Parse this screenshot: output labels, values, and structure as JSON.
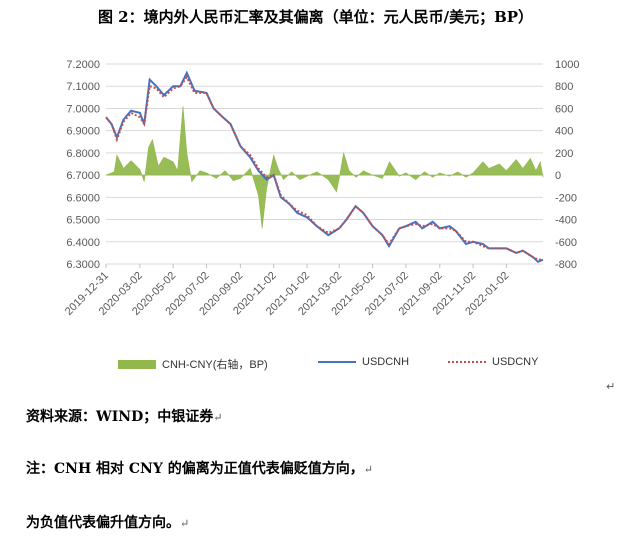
{
  "title": "图 2：境内外人民币汇率及其偏离（单位：元人民币/美元；BP）",
  "source_note": "资料来源：WIND；中银证券",
  "note_line1": "注：CNH 相对 CNY 的偏离为正值代表偏贬值方向，",
  "note_line2": "为负值代表偏升值方向。",
  "marks": {
    "return_arrow": "↵"
  },
  "colors": {
    "cnh": "#4472c4",
    "cny": "#c0504d",
    "spread": "#92b84d",
    "grid": "#d9d9d9",
    "axis_text": "#595959"
  },
  "chart_data": {
    "type": "line",
    "legend_position": "bottom",
    "grid": true,
    "x_tick_labels": [
      "2019-12-31",
      "2020-03-02",
      "2020-05-02",
      "2020-07-02",
      "2020-09-02",
      "2020-11-02",
      "2021-01-02",
      "2021-03-02",
      "2021-05-02",
      "2021-07-02",
      "2021-09-02",
      "2021-11-02",
      "2022-01-02"
    ],
    "x_range": [
      "2019-12-31",
      "2022-03-10"
    ],
    "y_left": {
      "ylim": [
        6.3,
        7.2
      ],
      "ticks": [
        "6.3000",
        "6.4000",
        "6.5000",
        "6.6000",
        "6.7000",
        "6.8000",
        "6.9000",
        "7.0000",
        "7.1000",
        "7.2000"
      ]
    },
    "y_right": {
      "ylim": [
        -800,
        1000
      ],
      "ticks": [
        "-800",
        "-600",
        "-400",
        "-200",
        "0",
        "200",
        "400",
        "600",
        "800",
        "1000"
      ]
    },
    "series": [
      {
        "name": "USDCNH",
        "type": "line",
        "axis": "left",
        "points": [
          [
            "2019-12-31",
            6.96
          ],
          [
            "2020-01-10",
            6.93
          ],
          [
            "2020-01-20",
            6.87
          ],
          [
            "2020-02-01",
            6.95
          ],
          [
            "2020-02-15",
            6.99
          ],
          [
            "2020-03-02",
            6.98
          ],
          [
            "2020-03-10",
            6.93
          ],
          [
            "2020-03-20",
            7.13
          ],
          [
            "2020-04-01",
            7.1
          ],
          [
            "2020-04-15",
            7.06
          ],
          [
            "2020-05-02",
            7.1
          ],
          [
            "2020-05-15",
            7.1
          ],
          [
            "2020-05-27",
            7.16
          ],
          [
            "2020-06-10",
            7.08
          ],
          [
            "2020-07-02",
            7.07
          ],
          [
            "2020-07-15",
            7.0
          ],
          [
            "2020-08-01",
            6.96
          ],
          [
            "2020-08-15",
            6.93
          ],
          [
            "2020-09-02",
            6.83
          ],
          [
            "2020-09-20",
            6.78
          ],
          [
            "2020-10-05",
            6.72
          ],
          [
            "2020-10-20",
            6.68
          ],
          [
            "2020-11-02",
            6.7
          ],
          [
            "2020-11-15",
            6.6
          ],
          [
            "2020-12-01",
            6.57
          ],
          [
            "2020-12-15",
            6.53
          ],
          [
            "2021-01-02",
            6.51
          ],
          [
            "2021-01-20",
            6.47
          ],
          [
            "2021-02-10",
            6.43
          ],
          [
            "2021-03-02",
            6.46
          ],
          [
            "2021-03-15",
            6.5
          ],
          [
            "2021-04-01",
            6.56
          ],
          [
            "2021-04-15",
            6.53
          ],
          [
            "2021-05-02",
            6.47
          ],
          [
            "2021-05-20",
            6.43
          ],
          [
            "2021-06-01",
            6.38
          ],
          [
            "2021-06-20",
            6.46
          ],
          [
            "2021-07-02",
            6.47
          ],
          [
            "2021-07-20",
            6.49
          ],
          [
            "2021-08-01",
            6.46
          ],
          [
            "2021-08-20",
            6.49
          ],
          [
            "2021-09-02",
            6.46
          ],
          [
            "2021-09-20",
            6.47
          ],
          [
            "2021-10-01",
            6.45
          ],
          [
            "2021-10-20",
            6.39
          ],
          [
            "2021-11-02",
            6.4
          ],
          [
            "2021-11-20",
            6.39
          ],
          [
            "2021-12-01",
            6.37
          ],
          [
            "2021-12-20",
            6.37
          ],
          [
            "2022-01-02",
            6.37
          ],
          [
            "2022-01-20",
            6.35
          ],
          [
            "2022-02-01",
            6.36
          ],
          [
            "2022-02-20",
            6.33
          ],
          [
            "2022-03-01",
            6.31
          ],
          [
            "2022-03-10",
            6.32
          ]
        ]
      },
      {
        "name": "USDCNY",
        "type": "line",
        "axis": "left",
        "style": "dotted",
        "points": [
          [
            "2019-12-31",
            6.96
          ],
          [
            "2020-01-10",
            6.93
          ],
          [
            "2020-01-20",
            6.86
          ],
          [
            "2020-02-01",
            6.94
          ],
          [
            "2020-02-15",
            6.98
          ],
          [
            "2020-03-02",
            6.96
          ],
          [
            "2020-03-10",
            6.93
          ],
          [
            "2020-03-20",
            7.1
          ],
          [
            "2020-04-01",
            7.09
          ],
          [
            "2020-04-15",
            7.05
          ],
          [
            "2020-05-02",
            7.09
          ],
          [
            "2020-05-15",
            7.1
          ],
          [
            "2020-05-27",
            7.14
          ],
          [
            "2020-06-10",
            7.07
          ],
          [
            "2020-07-02",
            7.07
          ],
          [
            "2020-07-15",
            7.0
          ],
          [
            "2020-08-01",
            6.96
          ],
          [
            "2020-08-15",
            6.93
          ],
          [
            "2020-09-02",
            6.83
          ],
          [
            "2020-09-20",
            6.79
          ],
          [
            "2020-10-05",
            6.73
          ],
          [
            "2020-10-20",
            6.69
          ],
          [
            "2020-11-02",
            6.7
          ],
          [
            "2020-11-15",
            6.61
          ],
          [
            "2020-12-01",
            6.57
          ],
          [
            "2020-12-15",
            6.54
          ],
          [
            "2021-01-02",
            6.52
          ],
          [
            "2021-01-20",
            6.47
          ],
          [
            "2021-02-10",
            6.44
          ],
          [
            "2021-03-02",
            6.46
          ],
          [
            "2021-03-15",
            6.5
          ],
          [
            "2021-04-01",
            6.56
          ],
          [
            "2021-04-15",
            6.53
          ],
          [
            "2021-05-02",
            6.47
          ],
          [
            "2021-05-20",
            6.43
          ],
          [
            "2021-06-01",
            6.39
          ],
          [
            "2021-06-20",
            6.46
          ],
          [
            "2021-07-02",
            6.47
          ],
          [
            "2021-07-20",
            6.48
          ],
          [
            "2021-08-01",
            6.47
          ],
          [
            "2021-08-20",
            6.48
          ],
          [
            "2021-09-02",
            6.46
          ],
          [
            "2021-09-20",
            6.46
          ],
          [
            "2021-10-01",
            6.45
          ],
          [
            "2021-10-20",
            6.4
          ],
          [
            "2021-11-02",
            6.4
          ],
          [
            "2021-11-20",
            6.38
          ],
          [
            "2021-12-01",
            6.37
          ],
          [
            "2021-12-20",
            6.37
          ],
          [
            "2022-01-02",
            6.37
          ],
          [
            "2022-01-20",
            6.35
          ],
          [
            "2022-02-01",
            6.36
          ],
          [
            "2022-02-20",
            6.33
          ],
          [
            "2022-03-01",
            6.32
          ],
          [
            "2022-03-10",
            6.32
          ]
        ]
      },
      {
        "name": "CNH-CNY(右轴，BP)",
        "type": "area",
        "axis": "right",
        "points": [
          [
            "2019-12-31",
            0
          ],
          [
            "2020-01-15",
            30
          ],
          [
            "2020-01-20",
            180
          ],
          [
            "2020-02-01",
            60
          ],
          [
            "2020-02-15",
            130
          ],
          [
            "2020-03-02",
            50
          ],
          [
            "2020-03-10",
            -60
          ],
          [
            "2020-03-18",
            250
          ],
          [
            "2020-03-25",
            320
          ],
          [
            "2020-04-05",
            80
          ],
          [
            "2020-04-15",
            160
          ],
          [
            "2020-05-02",
            120
          ],
          [
            "2020-05-10",
            40
          ],
          [
            "2020-05-20",
            620
          ],
          [
            "2020-05-27",
            200
          ],
          [
            "2020-06-05",
            -60
          ],
          [
            "2020-06-20",
            40
          ],
          [
            "2020-07-02",
            20
          ],
          [
            "2020-07-20",
            -30
          ],
          [
            "2020-08-05",
            40
          ],
          [
            "2020-08-20",
            -50
          ],
          [
            "2020-09-02",
            -30
          ],
          [
            "2020-09-20",
            60
          ],
          [
            "2020-10-05",
            -180
          ],
          [
            "2020-10-12",
            -480
          ],
          [
            "2020-10-20",
            -120
          ],
          [
            "2020-11-02",
            180
          ],
          [
            "2020-11-10",
            60
          ],
          [
            "2020-11-20",
            -40
          ],
          [
            "2020-12-05",
            30
          ],
          [
            "2020-12-20",
            -40
          ],
          [
            "2021-01-02",
            -10
          ],
          [
            "2021-01-20",
            30
          ],
          [
            "2021-02-10",
            -40
          ],
          [
            "2021-02-25",
            -150
          ],
          [
            "2021-03-02",
            -30
          ],
          [
            "2021-03-10",
            200
          ],
          [
            "2021-03-20",
            40
          ],
          [
            "2021-04-02",
            -20
          ],
          [
            "2021-04-15",
            40
          ],
          [
            "2021-05-02",
            0
          ],
          [
            "2021-05-20",
            -30
          ],
          [
            "2021-06-02",
            120
          ],
          [
            "2021-06-20",
            -10
          ],
          [
            "2021-07-02",
            20
          ],
          [
            "2021-07-20",
            -40
          ],
          [
            "2021-08-05",
            30
          ],
          [
            "2021-08-20",
            -20
          ],
          [
            "2021-09-02",
            20
          ],
          [
            "2021-09-20",
            -10
          ],
          [
            "2021-10-05",
            30
          ],
          [
            "2021-10-20",
            -20
          ],
          [
            "2021-11-02",
            20
          ],
          [
            "2021-11-20",
            120
          ],
          [
            "2021-12-01",
            60
          ],
          [
            "2021-12-20",
            100
          ],
          [
            "2022-01-02",
            40
          ],
          [
            "2022-01-20",
            140
          ],
          [
            "2022-02-01",
            60
          ],
          [
            "2022-02-15",
            150
          ],
          [
            "2022-02-25",
            40
          ],
          [
            "2022-03-05",
            120
          ],
          [
            "2022-03-10",
            -20
          ]
        ]
      }
    ]
  }
}
